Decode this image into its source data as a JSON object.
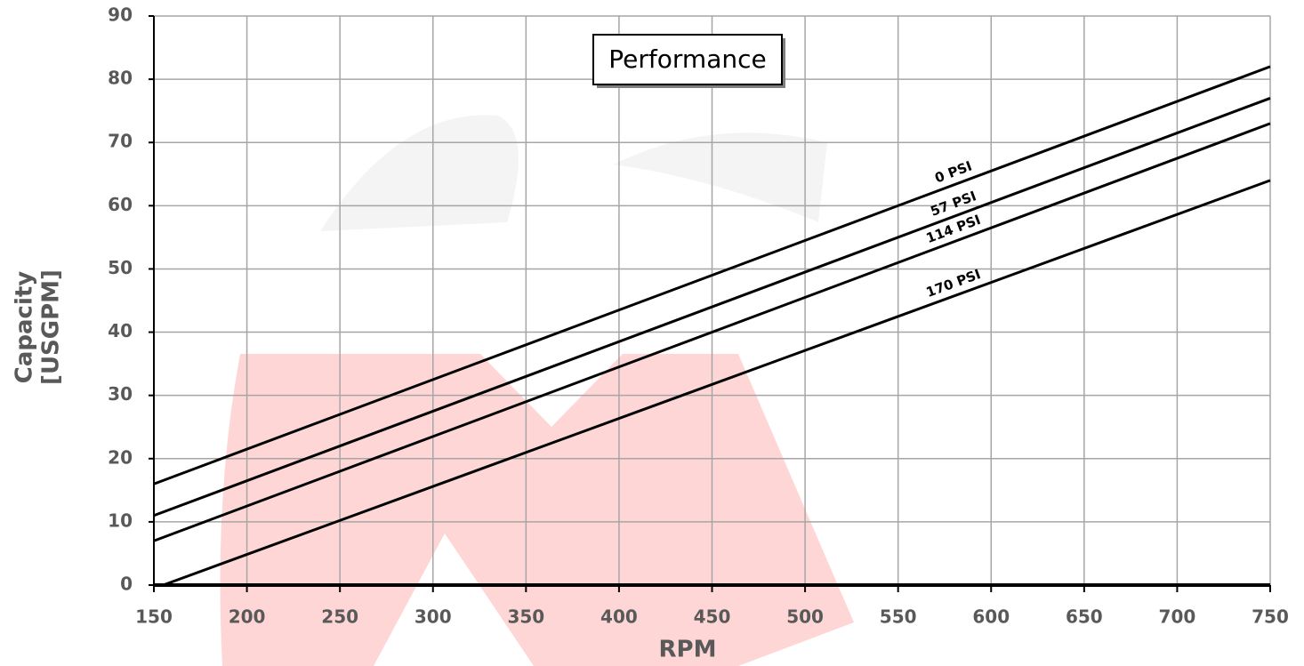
{
  "chart_data": {
    "type": "line",
    "title": "Performance",
    "x_label": "RPM",
    "y_label": [
      "Capacity",
      "[USGPM]"
    ],
    "series": [
      {
        "name": "0 PSI",
        "color": "#000000",
        "x": [
          150,
          750
        ],
        "values": [
          16,
          82
        ]
      },
      {
        "name": "57 PSI",
        "color": "#000000",
        "x": [
          150,
          750
        ],
        "values": [
          11,
          77
        ]
      },
      {
        "name": "114 PSI",
        "color": "#000000",
        "x": [
          150,
          750
        ],
        "values": [
          7,
          73
        ]
      },
      {
        "name": "170 PSI",
        "color": "#000000",
        "x": [
          155,
          750
        ],
        "values": [
          0,
          64
        ]
      }
    ],
    "xlim": [
      150,
      750
    ],
    "xticks": [
      150,
      200,
      250,
      300,
      350,
      400,
      450,
      500,
      550,
      600,
      650,
      700,
      750
    ],
    "ylim": [
      0,
      90
    ],
    "yticks": [
      0,
      10,
      20,
      30,
      40,
      50,
      60,
      70,
      80,
      90
    ],
    "grid": true
  }
}
